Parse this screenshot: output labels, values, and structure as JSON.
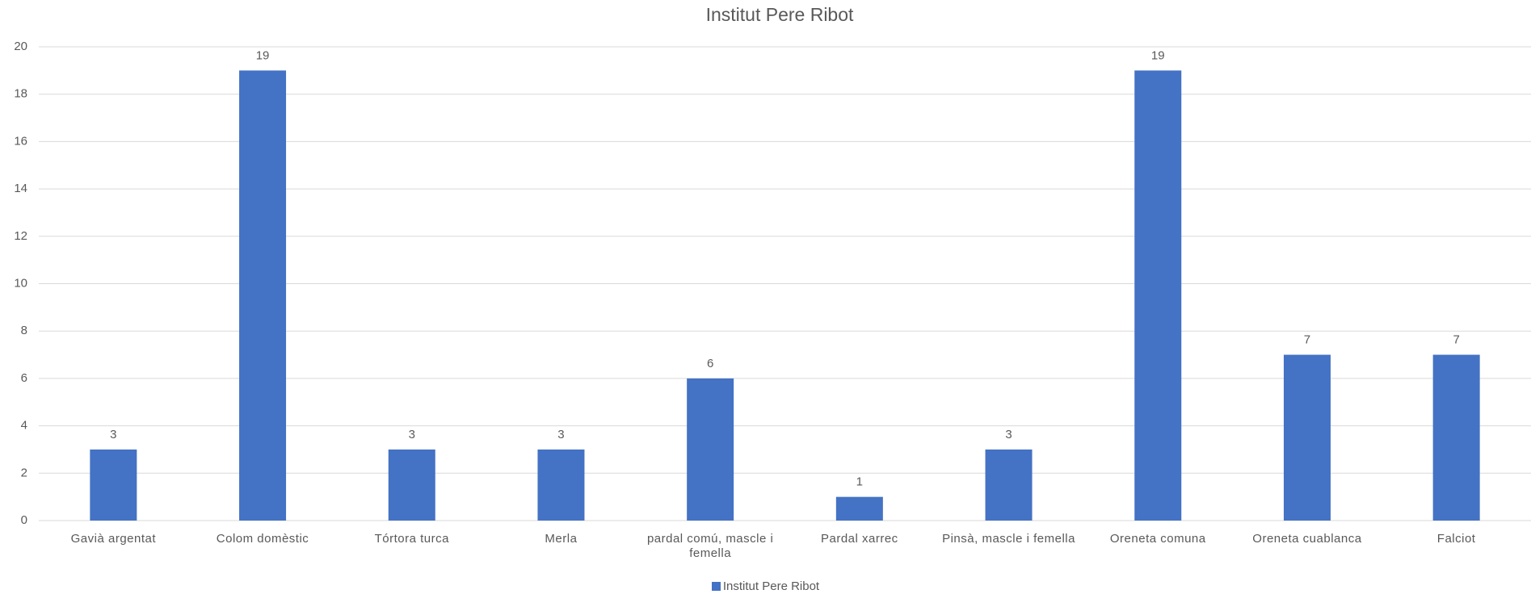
{
  "chart_data": {
    "type": "bar",
    "title": "Institut Pere Ribot",
    "categories": [
      "Gavià argentat",
      "Colom domèstic",
      "Tórtora turca",
      "Merla",
      "pardal comú, mascle i femella",
      "Pardal xarrec",
      "Pinsà, mascle i femella",
      "Oreneta comuna",
      "Oreneta cuablanca",
      "Falciot"
    ],
    "series": [
      {
        "name": "Institut Pere Ribot",
        "color": "#4472c4",
        "values": [
          3,
          19,
          3,
          3,
          6,
          1,
          3,
          19,
          7,
          7
        ]
      }
    ],
    "ylim": [
      0,
      20
    ],
    "yticks": [
      0,
      2,
      4,
      6,
      8,
      10,
      12,
      14,
      16,
      18,
      20
    ],
    "grid": true,
    "legend": "bottom"
  }
}
